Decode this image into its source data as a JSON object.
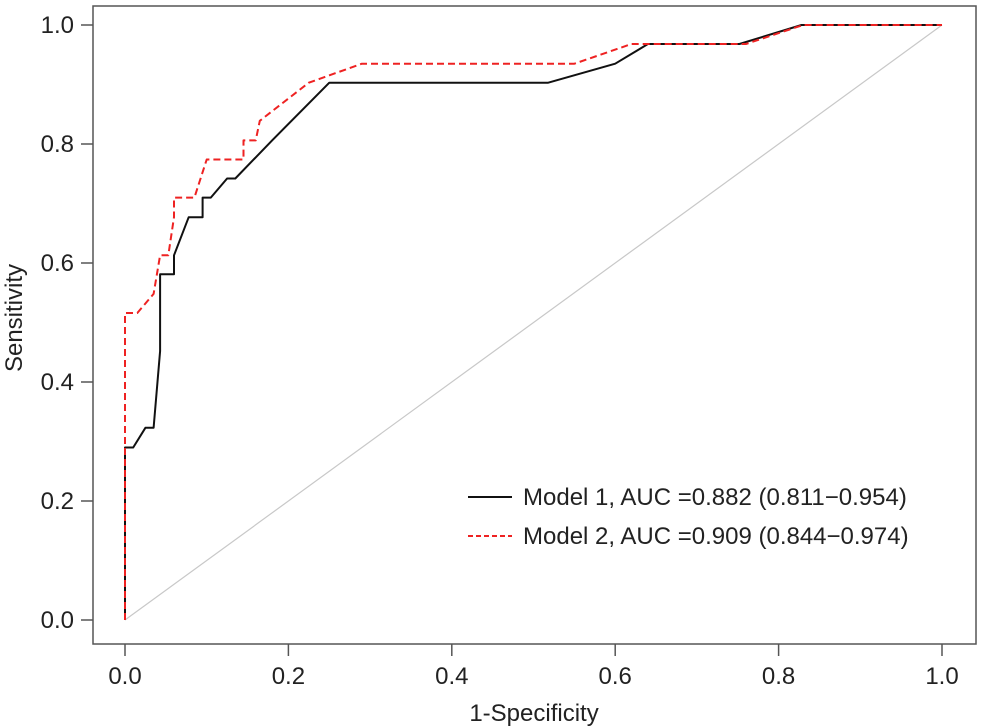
{
  "chart_data": {
    "type": "line",
    "title": "",
    "xlabel": "1-Specificity",
    "ylabel": "Sensitivity",
    "xlim": [
      0.0,
      1.0
    ],
    "ylim": [
      0.0,
      1.0
    ],
    "xticks": [
      "0.0",
      "0.2",
      "0.4",
      "0.6",
      "0.8",
      "1.0"
    ],
    "yticks": [
      "0.0",
      "0.2",
      "0.4",
      "0.6",
      "0.8",
      "1.0"
    ],
    "grid": false,
    "legend_position": "bottom-right",
    "series": [
      {
        "name": "Model 1, AUC =0.882 (0.811−0.954)",
        "color": "#111111",
        "dash": "solid",
        "points": [
          [
            0.0,
            0.0
          ],
          [
            0.0,
            0.29
          ],
          [
            0.01,
            0.29
          ],
          [
            0.025,
            0.323
          ],
          [
            0.035,
            0.323
          ],
          [
            0.043,
            0.452
          ],
          [
            0.043,
            0.581
          ],
          [
            0.06,
            0.581
          ],
          [
            0.06,
            0.613
          ],
          [
            0.078,
            0.677
          ],
          [
            0.095,
            0.677
          ],
          [
            0.095,
            0.71
          ],
          [
            0.105,
            0.71
          ],
          [
            0.125,
            0.742
          ],
          [
            0.135,
            0.742
          ],
          [
            0.18,
            0.806
          ],
          [
            0.25,
            0.903
          ],
          [
            0.518,
            0.903
          ],
          [
            0.6,
            0.935
          ],
          [
            0.64,
            0.968
          ],
          [
            0.752,
            0.968
          ],
          [
            0.828,
            1.0
          ],
          [
            1.0,
            1.0
          ]
        ]
      },
      {
        "name": "Model 2, AUC =0.909 (0.844−0.974)",
        "color": "#ee2222",
        "dash": "dashed",
        "points": [
          [
            0.0,
            0.0
          ],
          [
            0.0,
            0.516
          ],
          [
            0.015,
            0.516
          ],
          [
            0.035,
            0.548
          ],
          [
            0.043,
            0.613
          ],
          [
            0.053,
            0.613
          ],
          [
            0.06,
            0.677
          ],
          [
            0.06,
            0.71
          ],
          [
            0.085,
            0.71
          ],
          [
            0.1,
            0.774
          ],
          [
            0.145,
            0.774
          ],
          [
            0.145,
            0.806
          ],
          [
            0.16,
            0.806
          ],
          [
            0.165,
            0.839
          ],
          [
            0.225,
            0.903
          ],
          [
            0.29,
            0.935
          ],
          [
            0.55,
            0.935
          ],
          [
            0.62,
            0.968
          ],
          [
            0.76,
            0.968
          ],
          [
            0.83,
            1.0
          ],
          [
            1.0,
            1.0
          ]
        ]
      },
      {
        "name": "",
        "color": "#c8c8c8",
        "dash": "solid",
        "points": [
          [
            0.0,
            0.0
          ],
          [
            1.0,
            1.0
          ]
        ]
      }
    ]
  }
}
